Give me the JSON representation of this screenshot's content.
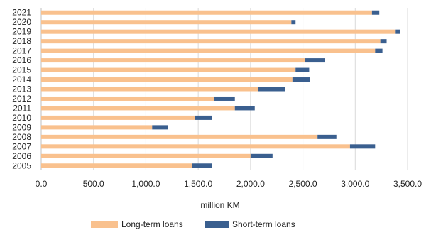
{
  "chart_data": {
    "type": "bar",
    "orientation": "horizontal",
    "stacked": true,
    "categories": [
      "2021",
      "2020",
      "2019",
      "2018",
      "2017",
      "2016",
      "2015",
      "2014",
      "2013",
      "2012",
      "2011",
      "2010",
      "2009",
      "2008",
      "2007",
      "2006",
      "2005"
    ],
    "series": [
      {
        "name": "Long-term loans",
        "color": "#f9c18e",
        "values": [
          3160,
          2390,
          3380,
          3240,
          3190,
          2520,
          2430,
          2400,
          2070,
          1650,
          1850,
          1470,
          1060,
          2640,
          2950,
          2000,
          1440
        ]
      },
      {
        "name": "Short-term loans",
        "color": "#3a5f8f",
        "values": [
          70,
          40,
          50,
          60,
          70,
          190,
          130,
          170,
          260,
          200,
          190,
          160,
          150,
          180,
          240,
          210,
          190
        ]
      }
    ],
    "xlabel": "million KM",
    "ylabel": "",
    "xlim": [
      0,
      3500
    ],
    "x_ticks": [
      "0.0",
      "500.0",
      "1,000.0",
      "1,500.0",
      "2,000.0",
      "2,500.0",
      "3,000.0",
      "3,500.0"
    ],
    "grid": true,
    "legend_position": "bottom"
  }
}
